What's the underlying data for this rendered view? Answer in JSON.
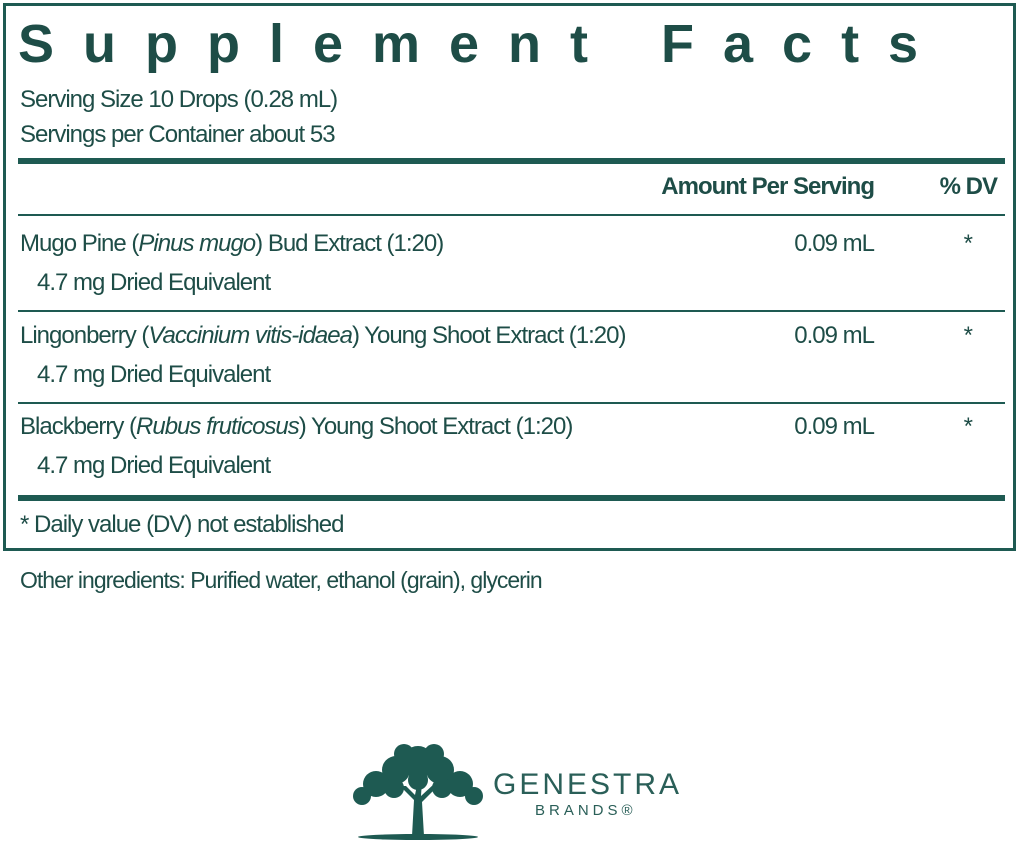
{
  "header": {
    "title": "Supplement Facts",
    "serving_size": "Serving Size 10 Drops (0.28 mL)",
    "servings_per_container": "Servings per Container about 53"
  },
  "table": {
    "columns": [
      "Amount Per Serving",
      "% DV"
    ],
    "rows": [
      {
        "name": [
          "Mugo Pine (",
          "Pinus mugo",
          ") Bud Extract (1:20)"
        ],
        "detail": "4.7 mg Dried Equivalent",
        "amount": "0.09 mL",
        "dv": "*"
      },
      {
        "name": [
          "Lingonberry (",
          "Vaccinium vitis-idaea",
          ") Young Shoot Extract (1:20)"
        ],
        "detail": "4.7 mg Dried Equivalent",
        "amount": "0.09 mL",
        "dv": "*"
      },
      {
        "name": [
          "Blackberry (",
          "Rubus fruticosus",
          ") Young Shoot Extract (1:20)"
        ],
        "detail": "4.7 mg Dried Equivalent",
        "amount": "0.09 mL",
        "dv": "*"
      }
    ]
  },
  "footnote": "* Daily value (DV) not established",
  "other_ingredients": "Other ingredients: Purified water, ethanol (grain), glycerin",
  "brand": {
    "name": "GENESTRA",
    "sub": "BRANDS®"
  }
}
